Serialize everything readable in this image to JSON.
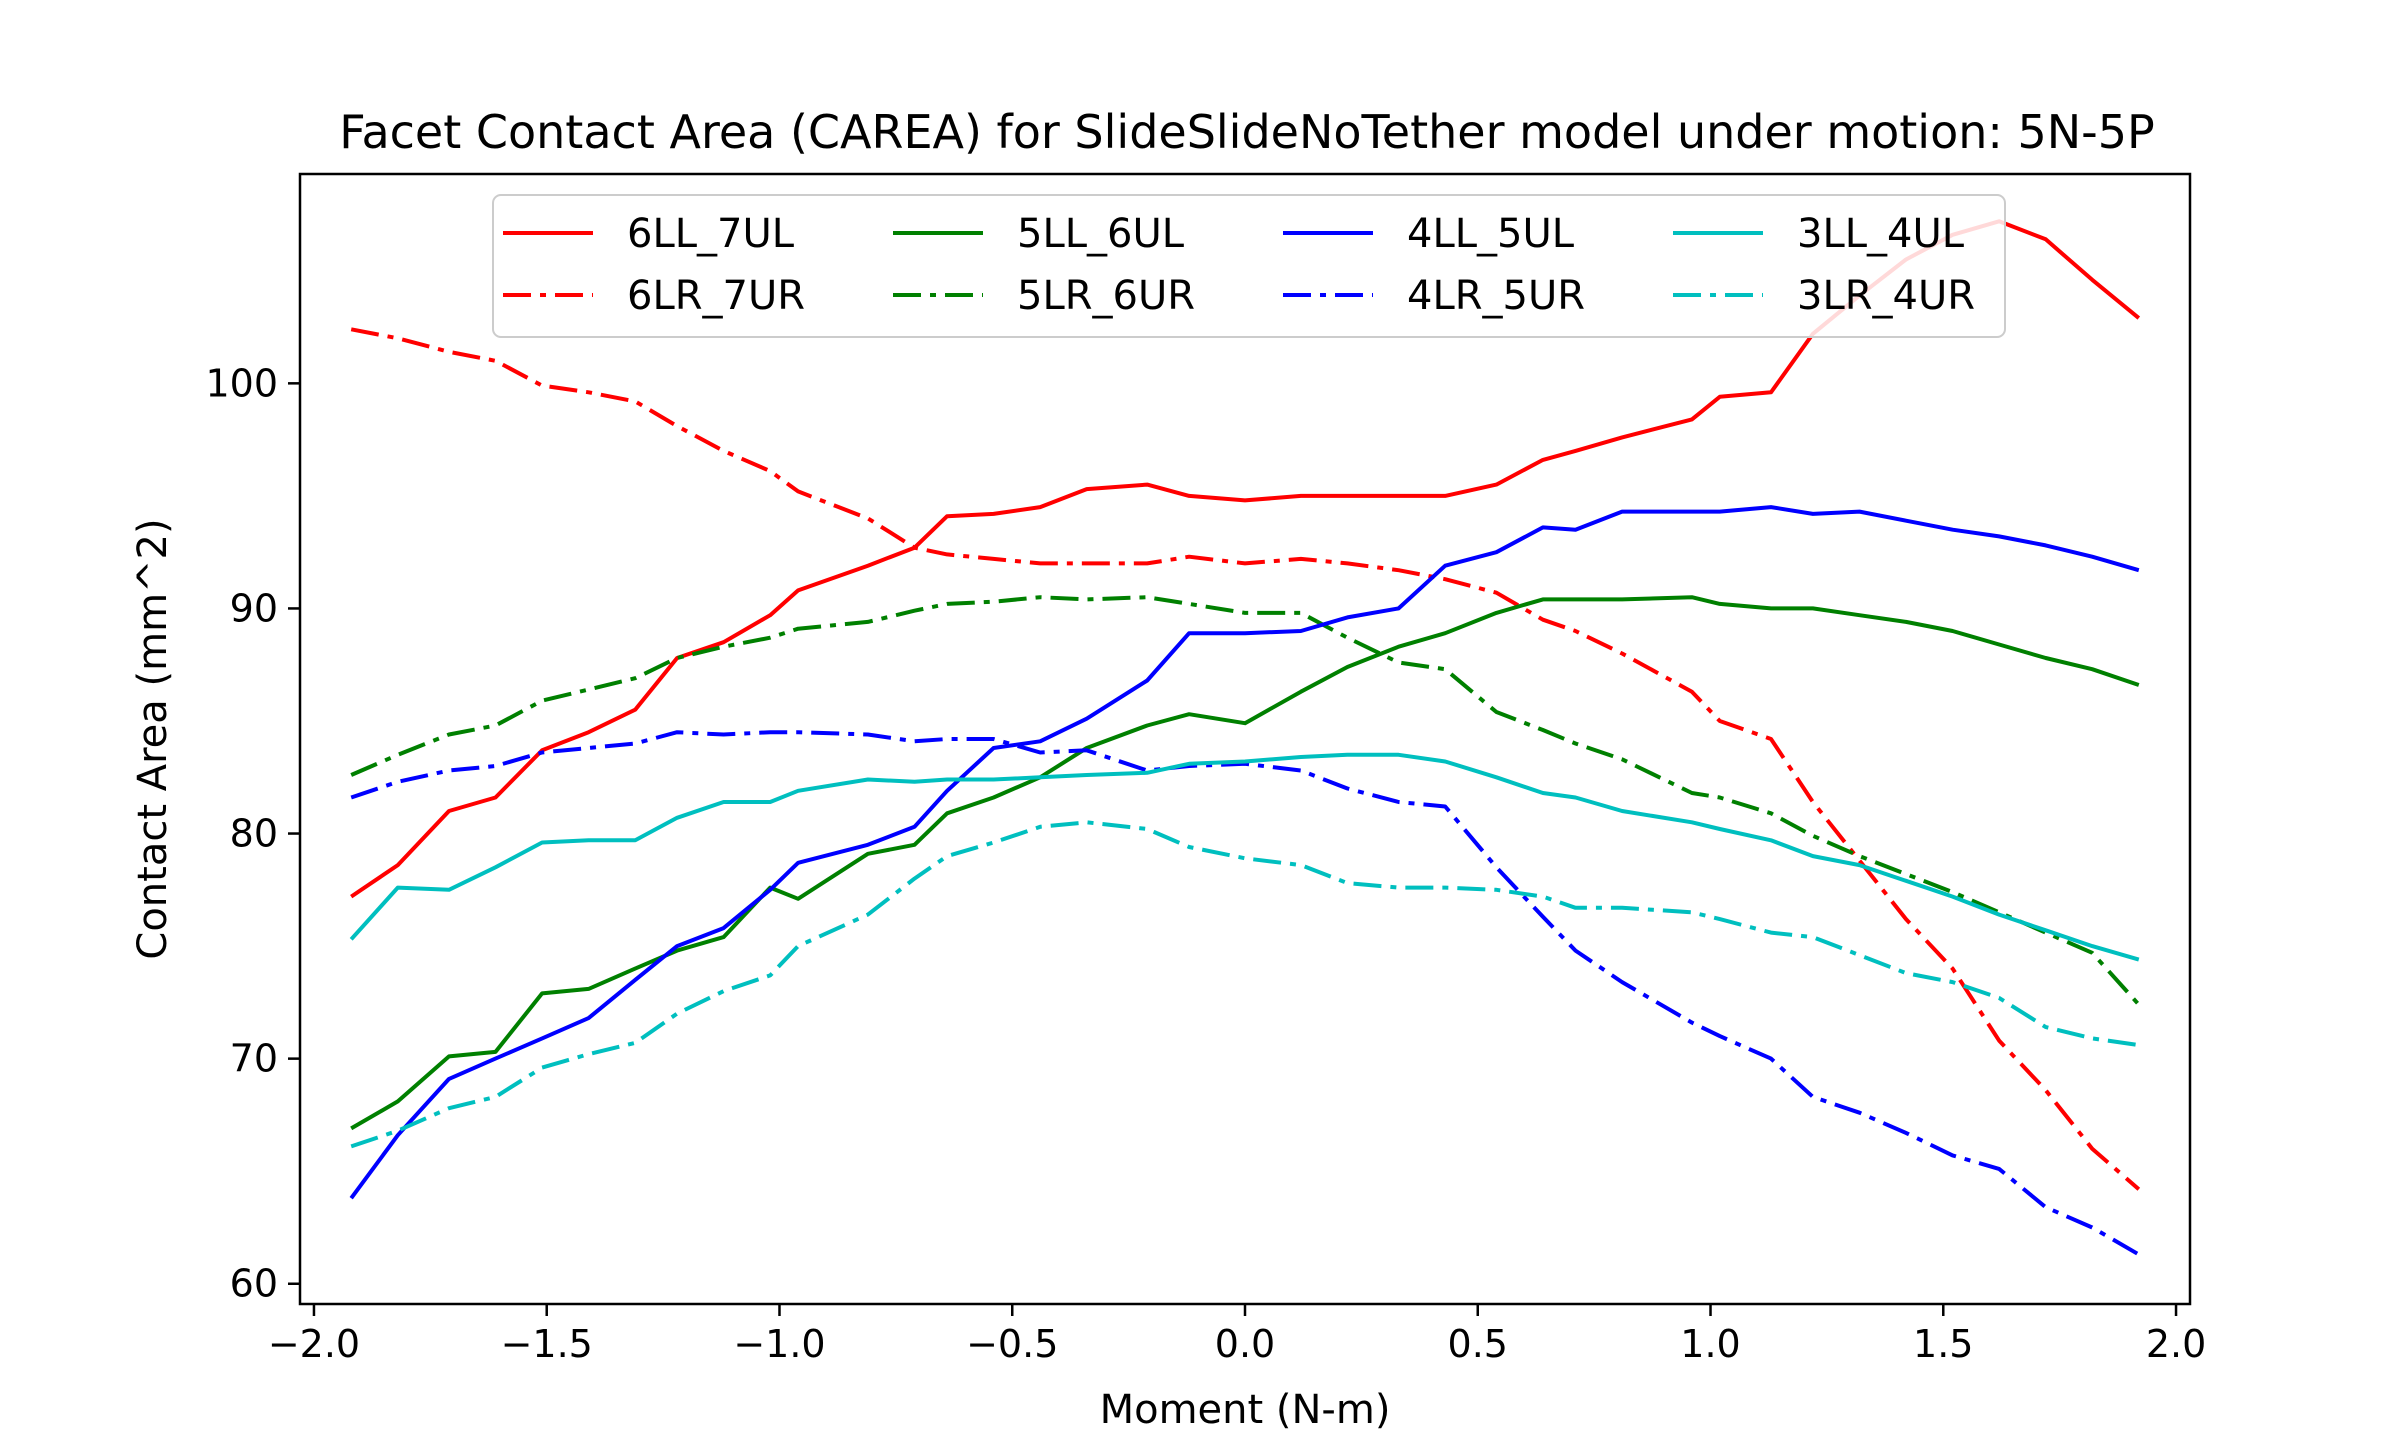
{
  "chart_data": {
    "type": "line",
    "title": "Facet Contact Area (CAREA) for SlideSlideNoTether model under motion: 5N-5P",
    "xlabel": "Moment (N-m)",
    "ylabel": "Contact Area (mm^2)",
    "xlim": [
      -2.03,
      2.03
    ],
    "ylim": [
      59.1,
      109.3
    ],
    "x_ticks": [
      -2.0,
      -1.5,
      -1.0,
      -0.5,
      0.0,
      0.5,
      1.0,
      1.5,
      2.0
    ],
    "x_tick_labels": [
      "−2.0",
      "−1.5",
      "−1.0",
      "−0.5",
      "0.0",
      "0.5",
      "1.0",
      "1.5",
      "2.0"
    ],
    "y_ticks": [
      60,
      70,
      80,
      90,
      100
    ],
    "y_tick_labels": [
      "60",
      "70",
      "80",
      "90",
      "100"
    ],
    "grid": false,
    "legend_position": "top-center",
    "legend_columns": 4,
    "x": [
      -1.92,
      -1.82,
      -1.71,
      -1.61,
      -1.51,
      -1.41,
      -1.31,
      -1.22,
      -1.12,
      -1.02,
      -0.96,
      -0.81,
      -0.71,
      -0.64,
      -0.54,
      -0.44,
      -0.34,
      -0.21,
      -0.12,
      0.0,
      0.12,
      0.22,
      0.33,
      0.43,
      0.54,
      0.64,
      0.71,
      0.81,
      0.96,
      1.02,
      1.13,
      1.22,
      1.32,
      1.42,
      1.52,
      1.62,
      1.72,
      1.82,
      1.92
    ],
    "series": [
      {
        "name": "6LL_7UL",
        "color": "#ff0000",
        "dash": "solid",
        "values": [
          77.2,
          78.6,
          81.0,
          81.6,
          83.7,
          84.5,
          85.5,
          87.8,
          88.5,
          89.7,
          90.8,
          91.9,
          92.7,
          94.1,
          94.2,
          94.5,
          95.3,
          95.5,
          95.0,
          94.8,
          95.0,
          95.0,
          95.0,
          95.0,
          95.5,
          96.6,
          97.0,
          97.6,
          98.4,
          99.4,
          99.6,
          102.2,
          103.9,
          105.5,
          106.6,
          107.2,
          106.4,
          104.6,
          102.9
        ]
      },
      {
        "name": "6LR_7UR",
        "color": "#ff0000",
        "dash": "dashdot",
        "values": [
          102.4,
          102.0,
          101.4,
          101.0,
          99.9,
          99.6,
          99.2,
          98.1,
          97.0,
          96.1,
          95.2,
          94.0,
          92.7,
          92.4,
          92.2,
          92.0,
          92.0,
          92.0,
          92.3,
          92.0,
          92.2,
          92.0,
          91.7,
          91.3,
          90.7,
          89.5,
          89.0,
          88.0,
          86.3,
          85.0,
          84.2,
          81.4,
          78.8,
          76.2,
          74.0,
          70.8,
          68.6,
          66.0,
          64.2
        ]
      },
      {
        "name": "5LL_6UL",
        "color": "#008000",
        "dash": "solid",
        "values": [
          66.9,
          68.1,
          70.1,
          70.3,
          72.9,
          73.1,
          74.0,
          74.8,
          75.4,
          77.6,
          77.1,
          79.1,
          79.5,
          80.9,
          81.6,
          82.5,
          83.8,
          84.8,
          85.3,
          84.9,
          86.3,
          87.4,
          88.3,
          88.9,
          89.8,
          90.4,
          90.4,
          90.4,
          90.5,
          90.2,
          90.0,
          90.0,
          89.7,
          89.4,
          89.0,
          88.4,
          87.8,
          87.3,
          86.6
        ]
      },
      {
        "name": "5LR_6UR",
        "color": "#008000",
        "dash": "dashdot",
        "values": [
          82.6,
          83.5,
          84.4,
          84.8,
          85.9,
          86.4,
          86.9,
          87.8,
          88.3,
          88.7,
          89.1,
          89.4,
          89.9,
          90.2,
          90.3,
          90.5,
          90.4,
          90.5,
          90.2,
          89.8,
          89.8,
          88.7,
          87.6,
          87.3,
          85.4,
          84.6,
          84.0,
          83.3,
          81.8,
          81.6,
          80.9,
          79.9,
          79.0,
          78.2,
          77.4,
          76.5,
          75.6,
          74.7,
          72.4
        ]
      },
      {
        "name": "4LL_5UL",
        "color": "#0000ff",
        "dash": "solid",
        "values": [
          63.8,
          66.6,
          69.1,
          70.0,
          70.9,
          71.8,
          73.5,
          75.0,
          75.8,
          77.5,
          78.7,
          79.5,
          80.3,
          81.9,
          83.8,
          84.1,
          85.1,
          86.8,
          88.9,
          88.9,
          89.0,
          89.6,
          90.0,
          91.9,
          92.5,
          93.6,
          93.5,
          94.3,
          94.3,
          94.3,
          94.5,
          94.2,
          94.3,
          93.9,
          93.5,
          93.2,
          92.8,
          92.3,
          91.7
        ]
      },
      {
        "name": "4LR_5UR",
        "color": "#0000ff",
        "dash": "dashdot",
        "values": [
          81.6,
          82.3,
          82.8,
          83.0,
          83.6,
          83.8,
          84.0,
          84.5,
          84.4,
          84.5,
          84.5,
          84.4,
          84.1,
          84.2,
          84.2,
          83.6,
          83.7,
          82.8,
          83.0,
          83.1,
          82.8,
          82.0,
          81.4,
          81.2,
          78.5,
          76.3,
          74.8,
          73.4,
          71.6,
          71.0,
          70.0,
          68.3,
          67.6,
          66.7,
          65.7,
          65.1,
          63.4,
          62.5,
          61.3
        ]
      },
      {
        "name": "3LL_4UL",
        "color": "#00bfbf",
        "dash": "solid",
        "values": [
          75.3,
          77.6,
          77.5,
          78.5,
          79.6,
          79.7,
          79.7,
          80.7,
          81.4,
          81.4,
          81.9,
          82.4,
          82.3,
          82.4,
          82.4,
          82.5,
          82.6,
          82.7,
          83.1,
          83.2,
          83.4,
          83.5,
          83.5,
          83.2,
          82.5,
          81.8,
          81.6,
          81.0,
          80.5,
          80.2,
          79.7,
          79.0,
          78.6,
          77.9,
          77.2,
          76.4,
          75.7,
          75.0,
          74.4
        ]
      },
      {
        "name": "3LR_4UR",
        "color": "#00bfbf",
        "dash": "dashdot",
        "values": [
          66.1,
          66.8,
          67.8,
          68.3,
          69.6,
          70.2,
          70.7,
          72.0,
          73.0,
          73.7,
          75.0,
          76.4,
          78.0,
          79.0,
          79.6,
          80.3,
          80.5,
          80.2,
          79.4,
          78.9,
          78.6,
          77.8,
          77.6,
          77.6,
          77.5,
          77.2,
          76.7,
          76.7,
          76.5,
          76.2,
          75.6,
          75.4,
          74.6,
          73.8,
          73.4,
          72.7,
          71.4,
          70.9,
          70.6
        ]
      }
    ]
  }
}
